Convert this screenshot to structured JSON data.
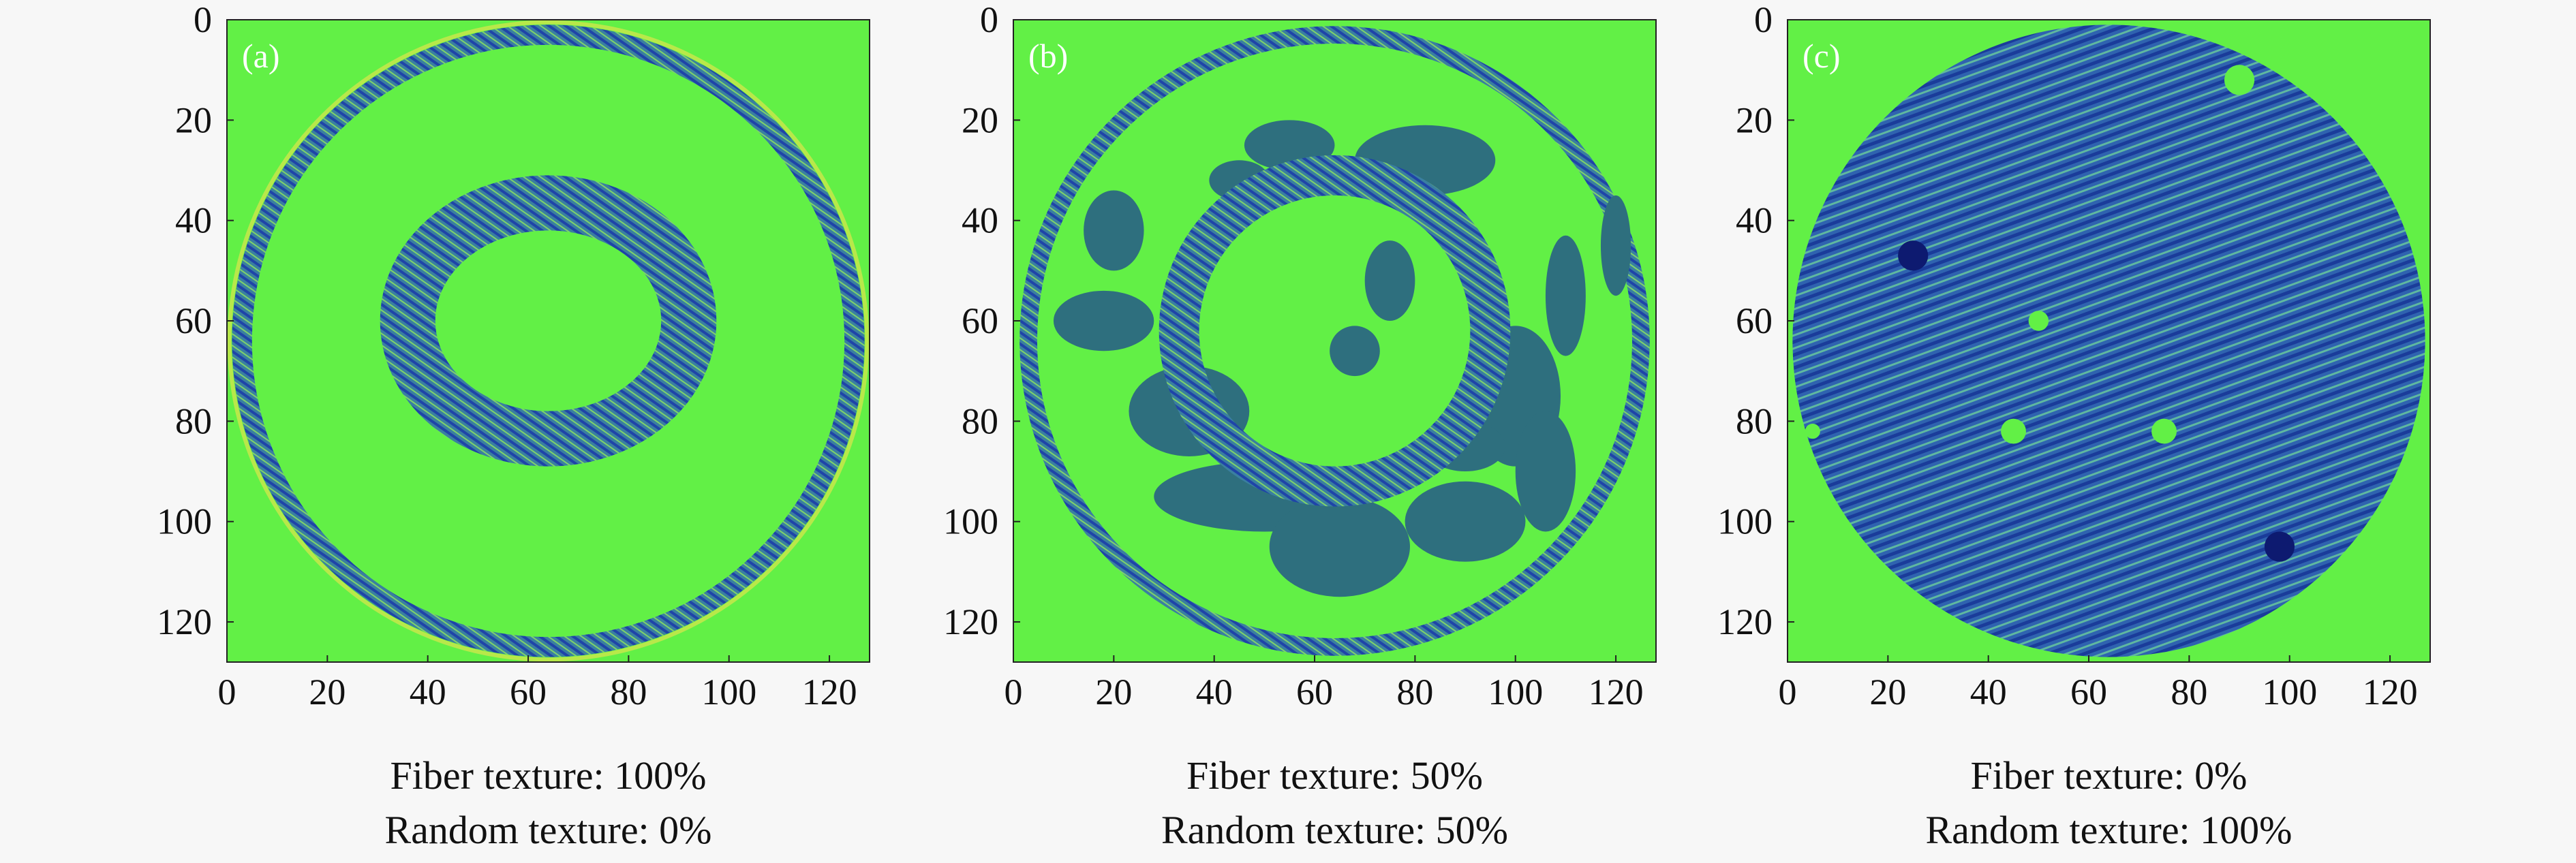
{
  "chart_data": [
    {
      "type": "image",
      "label": "(a)",
      "xlim": [
        0,
        128
      ],
      "xticks": [
        0,
        20,
        40,
        60,
        80,
        100,
        120
      ],
      "ylim": [
        0,
        128
      ],
      "yticks": [
        0,
        20,
        40,
        60,
        80,
        100,
        120
      ],
      "y_inverted": true,
      "caption": [
        "Fiber texture: 100%",
        "Random texture: 0%"
      ]
    },
    {
      "type": "image",
      "label": "(b)",
      "xlim": [
        0,
        128
      ],
      "xticks": [
        0,
        20,
        40,
        60,
        80,
        100,
        120
      ],
      "ylim": [
        0,
        128
      ],
      "yticks": [
        0,
        20,
        40,
        60,
        80,
        100,
        120
      ],
      "y_inverted": true,
      "caption": [
        "Fiber texture: 50%",
        "Random texture: 50%"
      ]
    },
    {
      "type": "image",
      "label": "(c)",
      "xlim": [
        0,
        128
      ],
      "xticks": [
        0,
        20,
        40,
        60,
        80,
        100,
        120
      ],
      "ylim": [
        0,
        128
      ],
      "yticks": [
        0,
        20,
        40,
        60,
        80,
        100,
        120
      ],
      "y_inverted": true,
      "caption": [
        "Fiber texture: 0%",
        "Random texture: 100%"
      ]
    }
  ]
}
